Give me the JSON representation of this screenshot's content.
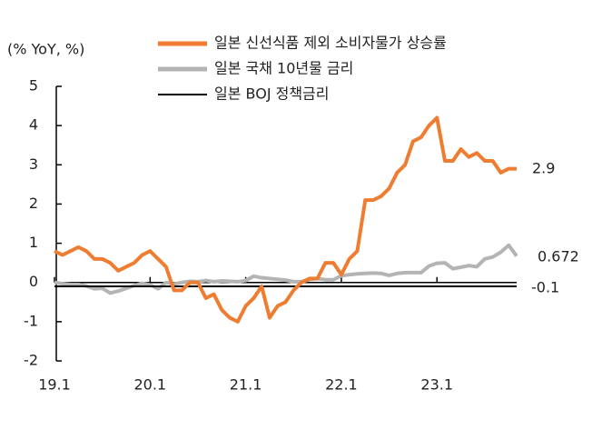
{
  "chart_data": {
    "type": "line",
    "y_label": "(% YoY, %)",
    "categories": [
      "19.1",
      null,
      null,
      null,
      null,
      null,
      null,
      null,
      null,
      null,
      null,
      null,
      "20.1",
      null,
      null,
      null,
      null,
      null,
      null,
      null,
      null,
      null,
      null,
      null,
      "21.1",
      null,
      null,
      null,
      null,
      null,
      null,
      null,
      null,
      null,
      null,
      null,
      "22.1",
      null,
      null,
      null,
      null,
      null,
      null,
      null,
      null,
      null,
      null,
      null,
      "23.1",
      null,
      null,
      null,
      null,
      null,
      null,
      null,
      null,
      null,
      null
    ],
    "series": [
      {
        "name": "일본 신선식품 제외 소비자물가 상승률",
        "color": "#ee7d31",
        "values": [
          0.8,
          0.7,
          0.8,
          0.9,
          0.8,
          0.6,
          0.6,
          0.5,
          0.3,
          0.4,
          0.5,
          0.7,
          0.8,
          0.6,
          0.4,
          -0.2,
          -0.2,
          0.0,
          0.0,
          -0.4,
          -0.3,
          -0.7,
          -0.9,
          -1.0,
          -0.6,
          -0.4,
          -0.1,
          -0.9,
          -0.6,
          -0.5,
          -0.2,
          0.0,
          0.1,
          0.1,
          0.5,
          0.5,
          0.2,
          0.6,
          0.8,
          2.1,
          2.1,
          2.2,
          2.4,
          2.8,
          3.0,
          3.6,
          3.7,
          4.0,
          4.2,
          3.1,
          3.1,
          3.4,
          3.2,
          3.3,
          3.1,
          3.1,
          2.8,
          2.9,
          2.9
        ]
      },
      {
        "name": "일본 국채 10년물 금리",
        "color": "#b4b4b4",
        "values": [
          0.0,
          -0.03,
          -0.05,
          -0.05,
          -0.09,
          -0.16,
          -0.15,
          -0.27,
          -0.22,
          -0.15,
          -0.08,
          -0.02,
          -0.06,
          -0.16,
          0.0,
          -0.04,
          0.0,
          0.03,
          0.02,
          0.05,
          0.02,
          0.04,
          0.03,
          0.02,
          0.05,
          0.16,
          0.12,
          0.1,
          0.08,
          0.06,
          0.02,
          0.02,
          0.07,
          0.1,
          0.07,
          0.07,
          0.17,
          0.2,
          0.22,
          0.23,
          0.24,
          0.23,
          0.18,
          0.23,
          0.25,
          0.25,
          0.25,
          0.42,
          0.49,
          0.5,
          0.35,
          0.39,
          0.43,
          0.4,
          0.6,
          0.65,
          0.77,
          0.95,
          0.672
        ]
      },
      {
        "name": "일본 BOJ 정책금리",
        "color": "#000000",
        "values": [
          -0.1,
          -0.1,
          -0.1,
          -0.1,
          -0.1,
          -0.1,
          -0.1,
          -0.1,
          -0.1,
          -0.1,
          -0.1,
          -0.1,
          -0.1,
          -0.1,
          -0.1,
          -0.1,
          -0.1,
          -0.1,
          -0.1,
          -0.1,
          -0.1,
          -0.1,
          -0.1,
          -0.1,
          -0.1,
          -0.1,
          -0.1,
          -0.1,
          -0.1,
          -0.1,
          -0.1,
          -0.1,
          -0.1,
          -0.1,
          -0.1,
          -0.1,
          -0.1,
          -0.1,
          -0.1,
          -0.1,
          -0.1,
          -0.1,
          -0.1,
          -0.1,
          -0.1,
          -0.1,
          -0.1,
          -0.1,
          -0.1,
          -0.1,
          -0.1,
          -0.1,
          -0.1,
          -0.1,
          -0.1,
          -0.1,
          -0.1,
          -0.1,
          -0.1
        ]
      }
    ],
    "ylim": [
      -2,
      5
    ],
    "yticks": [
      -2,
      -1,
      0,
      1,
      2,
      3,
      4,
      5
    ]
  }
}
